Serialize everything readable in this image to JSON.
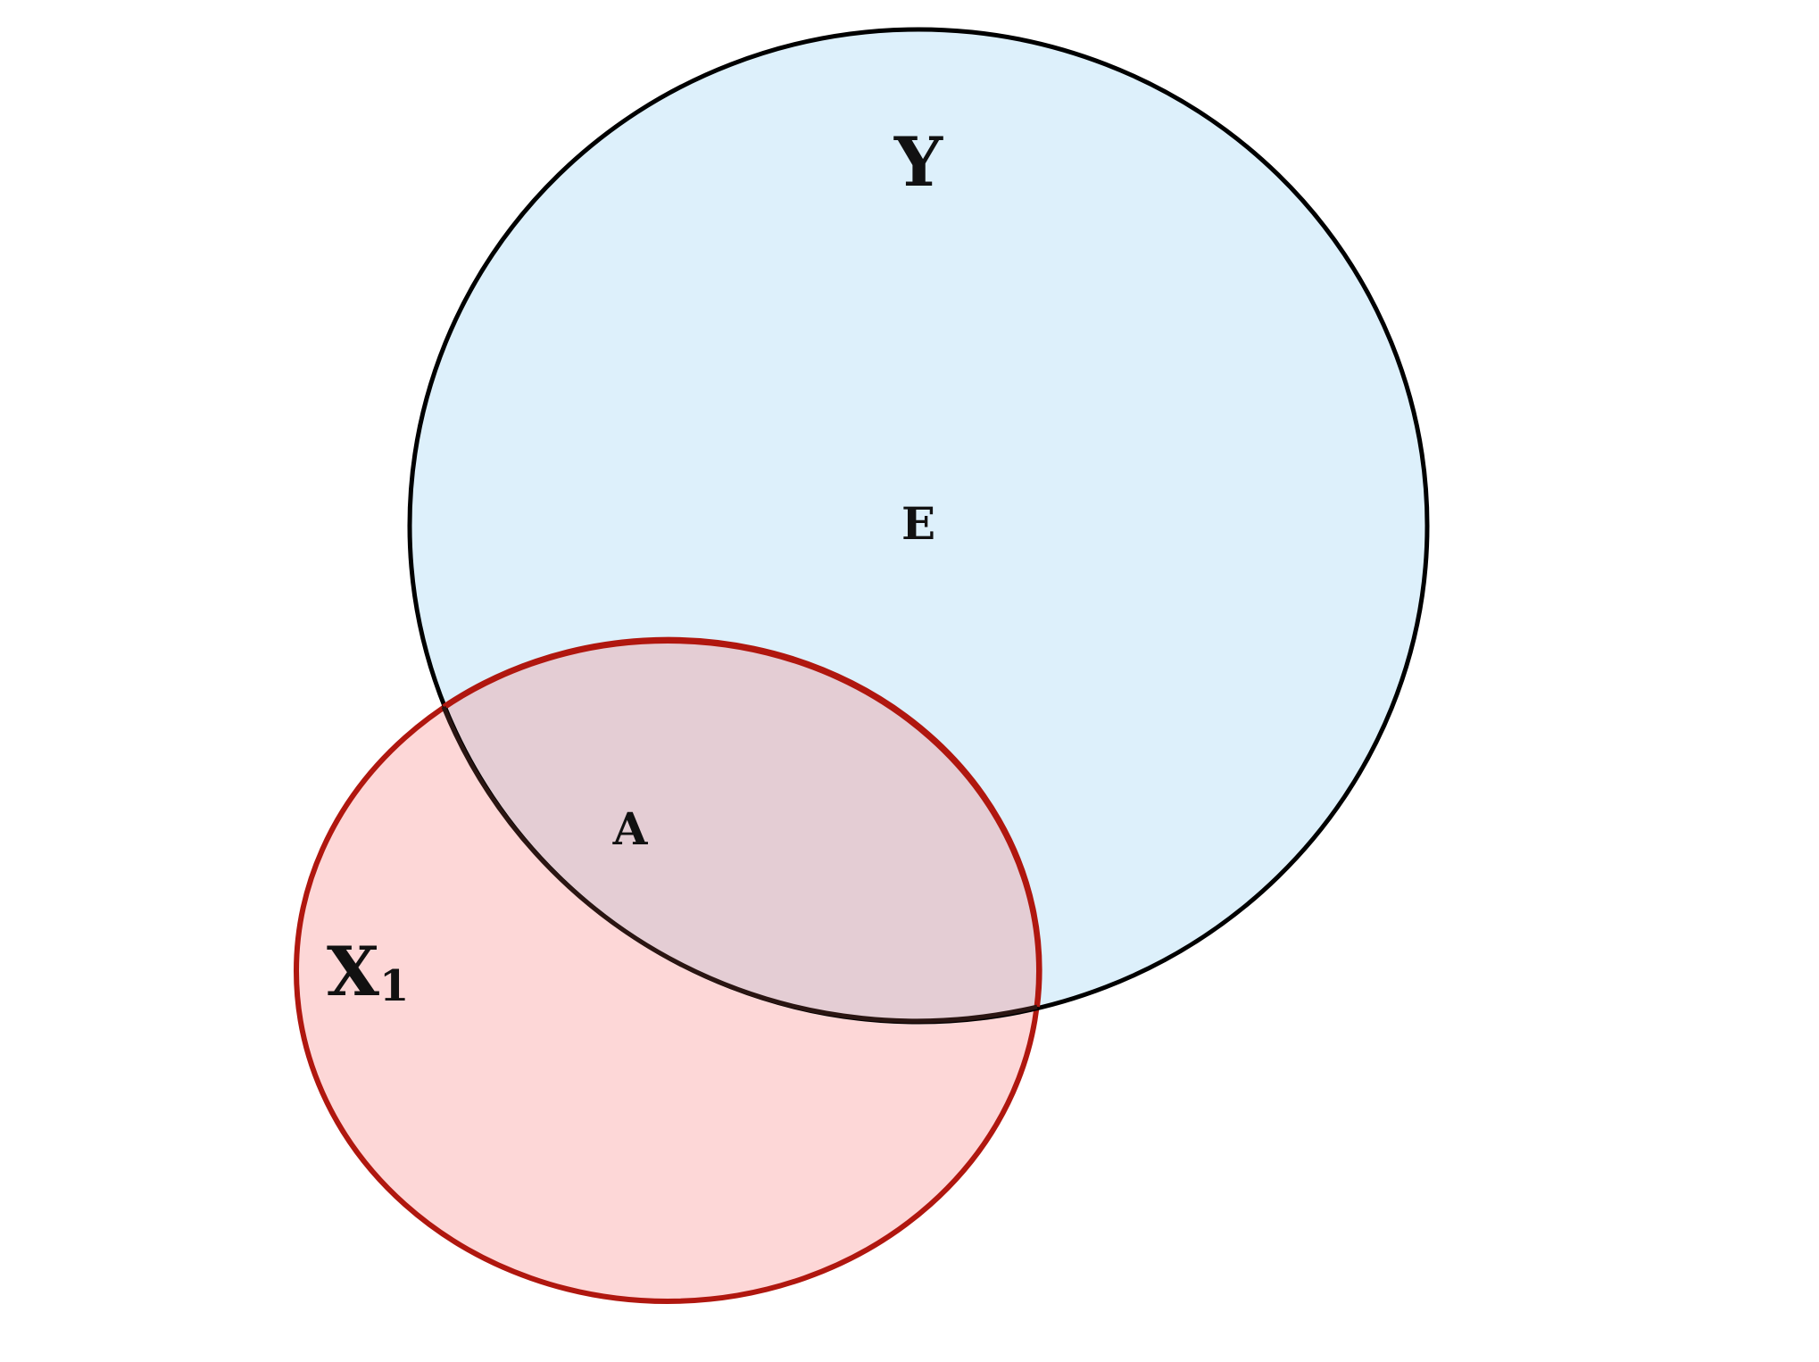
{
  "diagram": {
    "type": "venn",
    "sets": [
      {
        "id": "Y",
        "label": "Y",
        "subscript": "",
        "fill": "#ddf0fb",
        "stroke": "#000000"
      },
      {
        "id": "X1",
        "label": "X",
        "subscript": "1",
        "fill": "#fdd7d7",
        "stroke": "#b0170f"
      }
    ],
    "regions": [
      {
        "id": "E",
        "label": "E",
        "in_sets": [
          "Y"
        ]
      },
      {
        "id": "A",
        "label": "A",
        "in_sets": [
          "Y",
          "X1"
        ]
      }
    ],
    "overlap_fill": "#e4cdd4"
  }
}
